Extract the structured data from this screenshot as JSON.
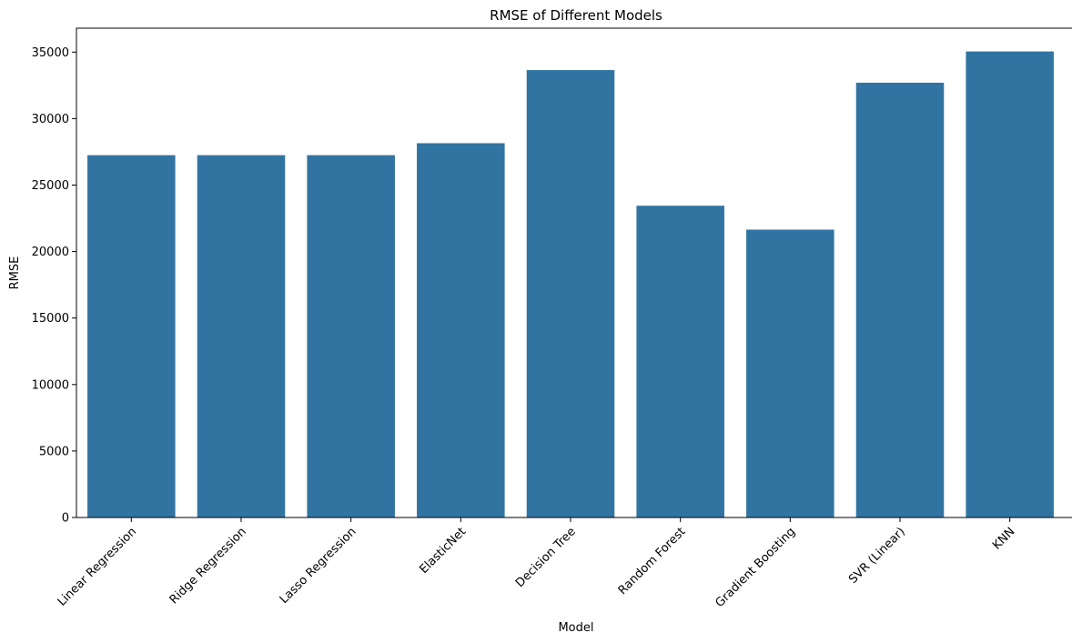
{
  "chart_data": {
    "type": "bar",
    "title": "RMSE of Different Models",
    "xlabel": "Model",
    "ylabel": "RMSE",
    "categories": [
      "Linear Regression",
      "Ridge Regression",
      "Lasso Regression",
      "ElasticNet",
      "Decision Tree",
      "Random Forest",
      "Gradient Boosting",
      "SVR (Linear)",
      "KNN"
    ],
    "values": [
      27250,
      27250,
      27250,
      28150,
      33650,
      23450,
      21650,
      32700,
      35050
    ],
    "ylim": [
      0,
      36800
    ],
    "yticks": [
      0,
      5000,
      10000,
      15000,
      20000,
      25000,
      30000,
      35000
    ],
    "bar_color": "#3274a1",
    "grid": false,
    "legend": "none"
  }
}
